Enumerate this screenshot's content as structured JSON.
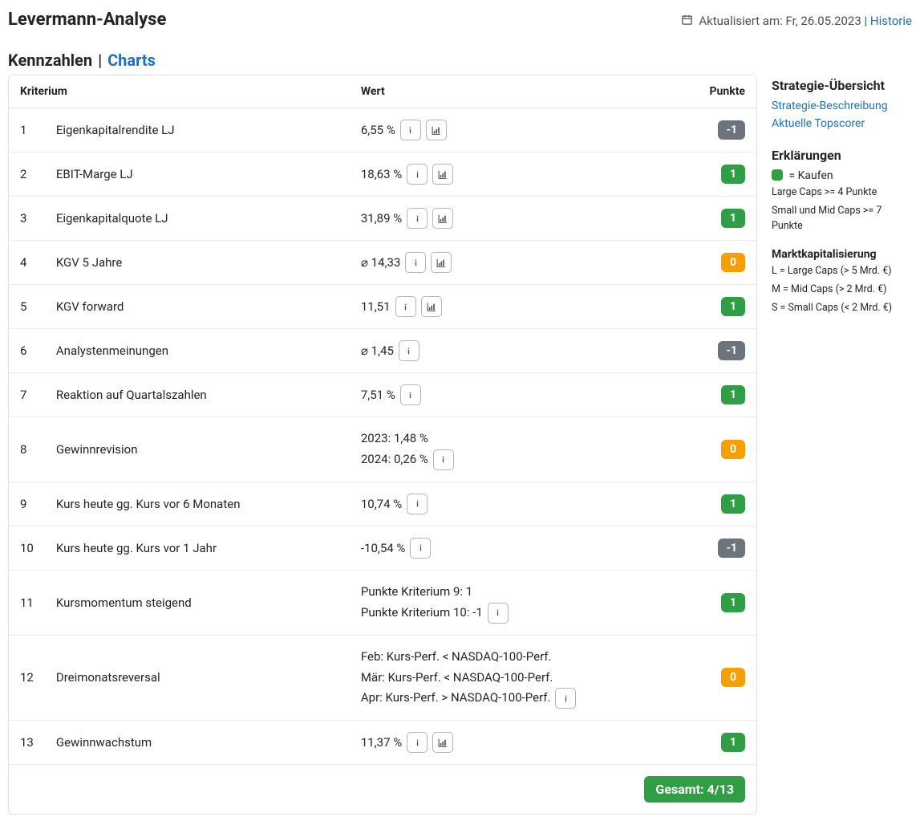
{
  "header": {
    "title": "Levermann-Analyse",
    "updated_label": "Aktualisiert am:",
    "updated_date": "Fr, 26.05.2023",
    "historie_link": "Historie"
  },
  "tabs": {
    "active": "Kennzahlen",
    "other": "Charts"
  },
  "columns": {
    "kriterium": "Kriterium",
    "wert": "Wert",
    "punkte": "Punkte"
  },
  "rows": [
    {
      "idx": "1",
      "name": "Eigenkapitalrendite LJ",
      "value": "6,55 %",
      "info": true,
      "chart": true,
      "points": "-1",
      "cls": "b-gray"
    },
    {
      "idx": "2",
      "name": "EBIT-Marge LJ",
      "value": "18,63 %",
      "info": true,
      "chart": true,
      "points": "1",
      "cls": "b-green"
    },
    {
      "idx": "3",
      "name": "Eigenkapitalquote LJ",
      "value": "31,89 %",
      "info": true,
      "chart": true,
      "points": "1",
      "cls": "b-green"
    },
    {
      "idx": "4",
      "name": "KGV 5 Jahre",
      "value": "⌀ 14,33",
      "info": true,
      "chart": true,
      "points": "0",
      "cls": "b-orange"
    },
    {
      "idx": "5",
      "name": "KGV forward",
      "value": "11,51",
      "info": true,
      "chart": true,
      "points": "1",
      "cls": "b-green"
    },
    {
      "idx": "6",
      "name": "Analystenmeinungen",
      "value": "⌀ 1,45",
      "info": true,
      "chart": false,
      "points": "-1",
      "cls": "b-gray"
    },
    {
      "idx": "7",
      "name": "Reaktion auf Quartalszahlen",
      "value": "7,51 %",
      "info": true,
      "chart": false,
      "points": "1",
      "cls": "b-green"
    },
    {
      "idx": "8",
      "name": "Gewinnrevision",
      "lines": [
        "2023: 1,48 %",
        "2024: 0,26 %"
      ],
      "info_last": true,
      "points": "0",
      "cls": "b-orange"
    },
    {
      "idx": "9",
      "name": "Kurs heute gg. Kurs vor 6 Monaten",
      "value": "10,74 %",
      "info": true,
      "chart": false,
      "points": "1",
      "cls": "b-green"
    },
    {
      "idx": "10",
      "name": "Kurs heute gg. Kurs vor 1 Jahr",
      "value": "-10,54 %",
      "info": true,
      "chart": false,
      "points": "-1",
      "cls": "b-gray"
    },
    {
      "idx": "11",
      "name": "Kursmomentum steigend",
      "lines": [
        "Punkte Kriterium 9: 1",
        "Punkte Kriterium 10: -1"
      ],
      "info_last": true,
      "points": "1",
      "cls": "b-green"
    },
    {
      "idx": "12",
      "name": "Dreimonatsreversal",
      "lines": [
        "Feb: Kurs-Perf. < NASDAQ-100-Perf.",
        "Mär: Kurs-Perf. < NASDAQ-100-Perf.",
        "Apr: Kurs-Perf. > NASDAQ-100-Perf."
      ],
      "info_last": true,
      "points": "0",
      "cls": "b-orange"
    },
    {
      "idx": "13",
      "name": "Gewinnwachstum",
      "value": "11,37 %",
      "info": true,
      "chart": true,
      "points": "1",
      "cls": "b-green"
    }
  ],
  "total": {
    "label": "Gesamt:",
    "value": "4/13"
  },
  "sidebar": {
    "overview_heading": "Strategie-Übersicht",
    "link1": "Strategie-Beschreibung",
    "link2": "Aktuelle Topscorer",
    "explain_heading": "Erklärungen",
    "buy_label": "= Kaufen",
    "large_rule": "Large Caps >= 4 Punkte",
    "smid_rule": "Small und Mid Caps >= 7 Punkte",
    "cap_heading": "Marktkapitalisierung",
    "cap_l": "L = Large Caps (> 5 Mrd. €)",
    "cap_m": "M = Mid Caps (> 2 Mrd. €)",
    "cap_s": "S = Small Caps (< 2 Mrd. €)"
  },
  "colors": {
    "green": "#2f9e44",
    "orange": "#f59f00",
    "gray": "#6c757d",
    "link": "#1971c2",
    "border": "#dee2e6"
  }
}
